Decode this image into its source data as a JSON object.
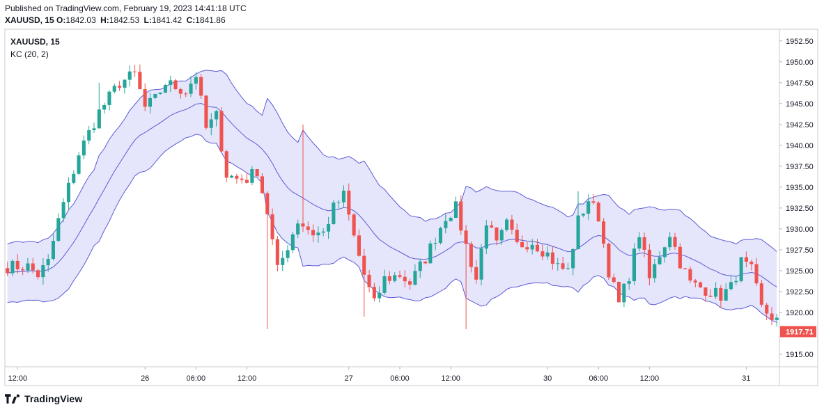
{
  "header": {
    "published": "Published on TradingView.com, February 19, 2023 14:41:18 UTC",
    "symbol_interval": "XAUUSD, 15",
    "o_label": "O:",
    "o_value": "1842.03",
    "h_label": "H:",
    "h_value": "1842.53",
    "l_label": "L:",
    "l_value": "1841.42",
    "c_label": "C:",
    "c_value": "1841.86"
  },
  "legend": {
    "symbol": "XAUUSD, 15",
    "indicator": "KC (20, 2)"
  },
  "footer": {
    "brand": "TradingView"
  },
  "colors": {
    "up": "#26a69a",
    "down": "#ef5350",
    "band_line": "#5b5bd6",
    "band_fill": "#dcdcfa",
    "price_tag": "#ef5350"
  },
  "chart_data": {
    "type": "candlestick",
    "title": "XAUUSD, 15",
    "indicator": "Keltner Channels (20, 2)",
    "y_axis": {
      "ticks": [
        "1952.50",
        "1950.00",
        "1947.50",
        "1945.00",
        "1942.50",
        "1940.00",
        "1937.50",
        "1935.00",
        "1932.50",
        "1930.00",
        "1927.50",
        "1925.00",
        "1922.50",
        "1920.00",
        "1915.00"
      ],
      "ylim": [
        1913.5,
        1953.9
      ]
    },
    "x_axis": {
      "labels": [
        "12:00",
        "26",
        "06:00",
        "12:00",
        "27",
        "06:00",
        "12:00",
        "30",
        "06:00",
        "12:00",
        "31"
      ],
      "positions": [
        2,
        27,
        37,
        47,
        67,
        77,
        87,
        106,
        116,
        126,
        145
      ]
    },
    "last_price": "1917.71",
    "anchors": [
      [
        0,
        1925.5
      ],
      [
        4,
        1925.5
      ],
      [
        6,
        1924.5
      ],
      [
        8,
        1926.0
      ],
      [
        10,
        1931.0
      ],
      [
        14,
        1939.0
      ],
      [
        18,
        1944.0
      ],
      [
        22,
        1947.5
      ],
      [
        25,
        1948.5
      ],
      [
        27,
        1944.5
      ],
      [
        29,
        1945.5
      ],
      [
        31,
        1947.5
      ],
      [
        33,
        1947.0
      ],
      [
        35,
        1946.5
      ],
      [
        37,
        1948.5
      ],
      [
        39,
        1942.0
      ],
      [
        41,
        1943.5
      ],
      [
        43,
        1936.5
      ],
      [
        45,
        1936.0
      ],
      [
        47,
        1936.0
      ],
      [
        49,
        1937.0
      ],
      [
        51,
        1932.0
      ],
      [
        53,
        1925.0
      ],
      [
        55,
        1928.0
      ],
      [
        57,
        1931.0
      ],
      [
        60,
        1929.5
      ],
      [
        62,
        1929.5
      ],
      [
        64,
        1932.5
      ],
      [
        66,
        1934.0
      ],
      [
        68,
        1929.0
      ],
      [
        70,
        1924.5
      ],
      [
        72,
        1921.0
      ],
      [
        74,
        1924.0
      ],
      [
        77,
        1924.5
      ],
      [
        79,
        1923.5
      ],
      [
        82,
        1926.5
      ],
      [
        84,
        1929.0
      ],
      [
        86,
        1931.5
      ],
      [
        88,
        1932.5
      ],
      [
        90,
        1928.0
      ],
      [
        92,
        1924.0
      ],
      [
        94,
        1931.0
      ],
      [
        96,
        1928.0
      ],
      [
        98,
        1930.5
      ],
      [
        100,
        1928.0
      ],
      [
        103,
        1928.5
      ],
      [
        106,
        1927.0
      ],
      [
        108,
        1925.5
      ],
      [
        110,
        1925.0
      ],
      [
        112,
        1931.0
      ],
      [
        114,
        1933.5
      ],
      [
        116,
        1931.5
      ],
      [
        118,
        1925.0
      ],
      [
        120,
        1921.0
      ],
      [
        122,
        1924.5
      ],
      [
        124,
        1929.5
      ],
      [
        126,
        1924.0
      ],
      [
        128,
        1927.0
      ],
      [
        130,
        1929.5
      ],
      [
        132,
        1926.0
      ],
      [
        134,
        1923.5
      ],
      [
        136,
        1923.0
      ],
      [
        138,
        1922.5
      ],
      [
        140,
        1922.0
      ],
      [
        142,
        1923.0
      ],
      [
        144,
        1926.0
      ],
      [
        146,
        1925.0
      ],
      [
        148,
        1920.5
      ],
      [
        151,
        1919.0
      ]
    ],
    "candle_count": 152,
    "spikes": {
      "51": 1918.0,
      "90": 1918.0,
      "58": 1942.5,
      "18": 1947.5,
      "112": 1934.5,
      "70": 1919.5
    }
  }
}
